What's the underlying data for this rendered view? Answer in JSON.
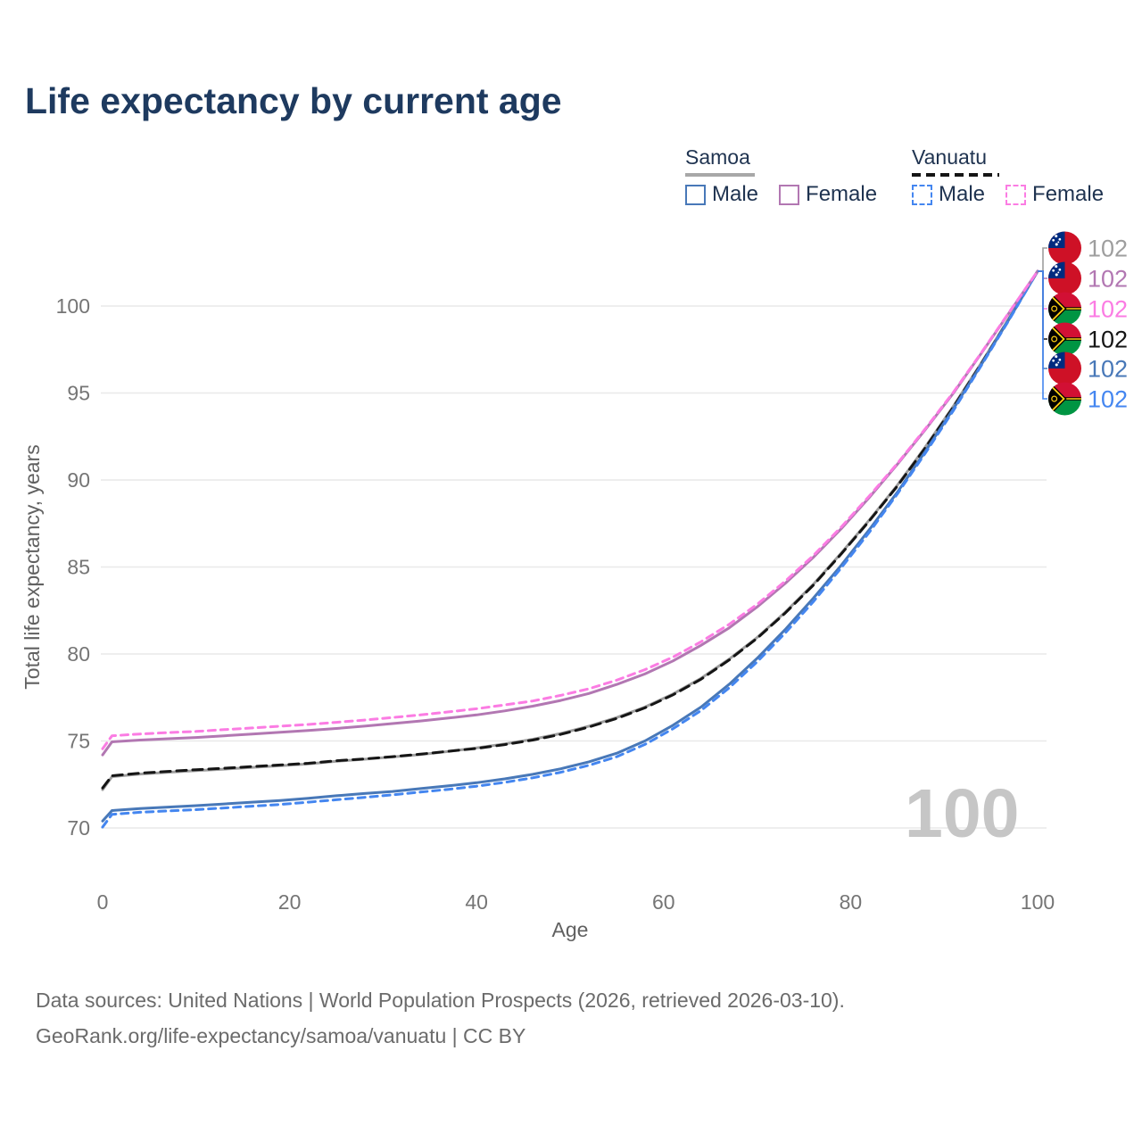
{
  "header": {
    "title": "Life expectancy by current age"
  },
  "legend": {
    "groups": [
      {
        "label": "Samoa",
        "line_style": "solid",
        "items": [
          {
            "label": "Male",
            "color": "#4878b8",
            "dash": false
          },
          {
            "label": "Female",
            "color": "#b277b2",
            "dash": false
          }
        ]
      },
      {
        "label": "Vanuatu",
        "line_style": "dashed",
        "items": [
          {
            "label": "Male",
            "color": "#4486f0",
            "dash": true
          },
          {
            "label": "Female",
            "color": "#fb7ce3",
            "dash": true
          }
        ]
      }
    ]
  },
  "chart_data": {
    "type": "line",
    "title": "Life expectancy by current age",
    "xlabel": "Age",
    "ylabel": "Total life expectancy, years",
    "xlim": [
      0,
      100
    ],
    "ylim": [
      70,
      100
    ],
    "x_ticks": [
      0,
      20,
      40,
      60,
      80,
      100
    ],
    "y_ticks": [
      70,
      75,
      80,
      85,
      90,
      95,
      100
    ],
    "grid": "horizontal-only",
    "legend_position": "top-right",
    "watermark": "100",
    "ages": [
      0,
      1,
      4,
      7,
      10,
      13,
      16,
      19,
      22,
      25,
      28,
      31,
      34,
      37,
      40,
      43,
      46,
      49,
      52,
      55,
      58,
      61,
      64,
      67,
      70,
      73,
      76,
      79,
      82,
      85,
      88,
      91,
      94,
      97,
      100
    ],
    "series": [
      {
        "key": "samoa-total",
        "name": "Samoa (both sexes)",
        "country": "Samoa",
        "sex": "both",
        "color": "#9e9e9e",
        "dash": false,
        "dasharray": "",
        "values": [
          72.2,
          72.95,
          73.1,
          73.2,
          73.3,
          73.38,
          73.48,
          73.58,
          73.68,
          73.83,
          73.95,
          74.08,
          74.22,
          74.4,
          74.6,
          74.83,
          75.1,
          75.43,
          75.85,
          76.35,
          76.95,
          77.7,
          78.6,
          79.7,
          80.95,
          82.4,
          84.0,
          85.8,
          87.7,
          89.7,
          91.9,
          94.25,
          96.75,
          99.35,
          102
        ]
      },
      {
        "key": "vanuatu-total",
        "name": "Vanuatu (both sexes)",
        "country": "Vanuatu",
        "sex": "both",
        "color": "#151515",
        "dash": true,
        "dasharray": "11 7",
        "values": [
          72.3,
          73.0,
          73.15,
          73.25,
          73.35,
          73.43,
          73.53,
          73.62,
          73.72,
          73.86,
          73.97,
          74.1,
          74.24,
          74.41,
          74.57,
          74.79,
          75.05,
          75.38,
          75.8,
          76.3,
          76.9,
          77.65,
          78.55,
          79.65,
          80.9,
          82.35,
          83.95,
          85.75,
          87.65,
          89.65,
          91.85,
          94.2,
          96.7,
          99.3,
          102
        ]
      },
      {
        "key": "samoa-male",
        "name": "Samoa Male",
        "country": "Samoa",
        "sex": "male",
        "color": "#4878b8",
        "dash": false,
        "dasharray": "",
        "values": [
          70.4,
          71.0,
          71.12,
          71.2,
          71.28,
          71.38,
          71.48,
          71.58,
          71.7,
          71.85,
          71.98,
          72.1,
          72.26,
          72.42,
          72.6,
          72.82,
          73.08,
          73.4,
          73.8,
          74.3,
          75.0,
          75.9,
          76.95,
          78.25,
          79.75,
          81.4,
          83.2,
          85.1,
          87.15,
          89.3,
          91.65,
          94.1,
          96.65,
          99.3,
          102
        ]
      },
      {
        "key": "vanuatu-male",
        "name": "Vanuatu Male",
        "country": "Vanuatu",
        "sex": "male",
        "color": "#4486f0",
        "dash": true,
        "dasharray": "8 6",
        "values": [
          70.05,
          70.78,
          70.9,
          70.98,
          71.05,
          71.15,
          71.25,
          71.35,
          71.48,
          71.62,
          71.76,
          71.9,
          72.06,
          72.22,
          72.4,
          72.62,
          72.88,
          73.2,
          73.6,
          74.1,
          74.8,
          75.7,
          76.75,
          78.05,
          79.55,
          81.2,
          83.0,
          84.95,
          87.0,
          89.2,
          91.55,
          94.0,
          96.6,
          99.25,
          102
        ]
      },
      {
        "key": "samoa-female",
        "name": "Samoa Female",
        "country": "Samoa",
        "sex": "female",
        "color": "#b277b2",
        "dash": false,
        "dasharray": "",
        "values": [
          74.2,
          74.95,
          75.05,
          75.13,
          75.2,
          75.3,
          75.4,
          75.5,
          75.6,
          75.72,
          75.85,
          76.0,
          76.15,
          76.32,
          76.5,
          76.73,
          77.0,
          77.33,
          77.73,
          78.25,
          78.85,
          79.6,
          80.5,
          81.5,
          82.7,
          84.05,
          85.55,
          87.2,
          89.0,
          90.9,
          92.9,
          95.0,
          97.3,
          99.65,
          102
        ]
      },
      {
        "key": "vanuatu-female",
        "name": "Vanuatu Female",
        "country": "Vanuatu",
        "sex": "female",
        "color": "#fb7ce3",
        "dash": true,
        "dasharray": "8 6",
        "values": [
          74.55,
          75.3,
          75.4,
          75.48,
          75.55,
          75.65,
          75.75,
          75.85,
          75.95,
          76.07,
          76.2,
          76.35,
          76.5,
          76.67,
          76.85,
          77.07,
          77.3,
          77.62,
          78.0,
          78.5,
          79.1,
          79.82,
          80.7,
          81.7,
          82.85,
          84.18,
          85.65,
          87.3,
          89.08,
          90.95,
          92.95,
          95.05,
          97.33,
          99.68,
          102
        ]
      }
    ],
    "end_labels": [
      {
        "flag": "samoa",
        "text": "102",
        "color": "#9e9e9e"
      },
      {
        "flag": "samoa",
        "text": "102",
        "color": "#b277b2"
      },
      {
        "flag": "vanuatu",
        "text": "102",
        "color": "#fb7ce3"
      },
      {
        "flag": "vanuatu",
        "text": "102",
        "color": "#151515"
      },
      {
        "flag": "samoa",
        "text": "102",
        "color": "#4878b8"
      },
      {
        "flag": "vanuatu",
        "text": "102",
        "color": "#4486f0"
      }
    ]
  },
  "footer": {
    "line1": "Data sources: United Nations | World Population Prospects (2026, retrieved 2026-03-10).",
    "line2": "GeoRank.org/life-expectancy/samoa/vanuatu | CC BY"
  }
}
